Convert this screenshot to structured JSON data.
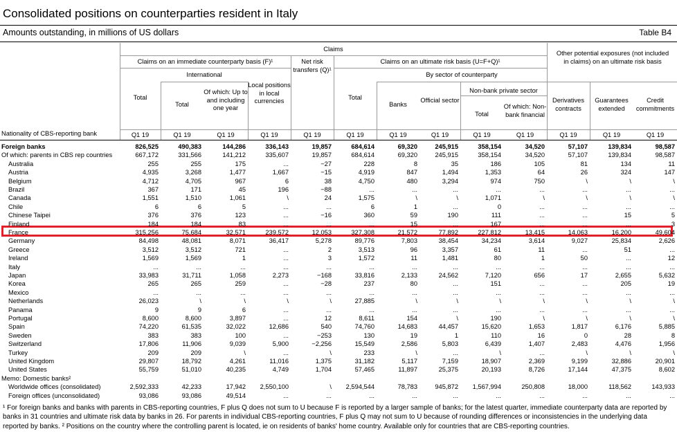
{
  "title": "Consolidated positions on counterparties resident in Italy",
  "subtitle": "Amounts outstanding, in millions of US dollars",
  "table_label": "Table B4",
  "headers": {
    "claims": "Claims",
    "immediate": "Claims on an immediate counterparty basis (F)¹",
    "international": "International",
    "ultimate": "Claims on an ultimate risk basis (U=F+Q)¹",
    "by_sector": "By sector of counterparty",
    "nonbank_private": "Non-bank private sector",
    "other_potential": "Other potential exposures (not included in claims) on an ultimate risk basis",
    "net_risk": "Net risk transfers (Q)¹",
    "nationality": "Nationality of CBS-reporting bank",
    "cols": [
      "Total",
      "Total",
      "Of which: Up to and including one year",
      "Local positions in local currencies",
      "",
      "Total",
      "Banks",
      "Official sector",
      "Total",
      "Of which: Non-bank financial",
      "Derivatives contracts",
      "Guarantees extended",
      "Credit commitments"
    ],
    "period": "Q1 19"
  },
  "rows": [
    {
      "label": "Foreign banks",
      "bold": true,
      "v": [
        "826,525",
        "490,383",
        "144,286",
        "336,143",
        "19,857",
        "684,614",
        "69,320",
        "245,915",
        "358,154",
        "34,520",
        "57,107",
        "139,834",
        "98,587"
      ]
    },
    {
      "label": "Of which: parents in CBS rep countries",
      "v": [
        "667,172",
        "331,566",
        "141,212",
        "335,607",
        "19,857",
        "684,614",
        "69,320",
        "245,915",
        "358,154",
        "34,520",
        "57,107",
        "139,834",
        "98,587"
      ]
    },
    {
      "label": "Australia",
      "v": [
        "255",
        "255",
        "175",
        "...",
        "−27",
        "228",
        "8",
        "35",
        "186",
        "105",
        "81",
        "134",
        "11"
      ]
    },
    {
      "label": "Austria",
      "v": [
        "4,935",
        "3,268",
        "1,477",
        "1,667",
        "−15",
        "4,919",
        "847",
        "1,494",
        "1,353",
        "64",
        "26",
        "324",
        "147"
      ]
    },
    {
      "label": "Belgium",
      "v": [
        "4,712",
        "4,705",
        "967",
        "6",
        "38",
        "4,750",
        "480",
        "3,294",
        "974",
        "750",
        "\\",
        "\\",
        "\\"
      ]
    },
    {
      "label": "Brazil",
      "v": [
        "367",
        "171",
        "45",
        "196",
        "−88",
        "...",
        "...",
        "...",
        "...",
        "...",
        "...",
        "...",
        "..."
      ]
    },
    {
      "label": "Canada",
      "v": [
        "1,551",
        "1,510",
        "1,061",
        "\\",
        "24",
        "1,575",
        "\\",
        "\\",
        "1,071",
        "\\",
        "\\",
        "\\",
        "\\"
      ]
    },
    {
      "label": "Chile",
      "v": [
        "6",
        "6",
        "5",
        "...",
        "...",
        "6",
        "1",
        "...",
        "0",
        "...",
        "...",
        "...",
        "..."
      ]
    },
    {
      "label": "Chinese Taipei",
      "v": [
        "376",
        "376",
        "123",
        "...",
        "−16",
        "360",
        "59",
        "190",
        "111",
        "...",
        "...",
        "15",
        "5"
      ]
    },
    {
      "label": "Finland",
      "v": [
        "184",
        "184",
        "83",
        "...",
        "...",
        "...",
        "15",
        "...",
        "167",
        "...",
        "...",
        "...",
        "3"
      ]
    },
    {
      "label": "France",
      "v": [
        "315,256",
        "75,684",
        "32,571",
        "239,572",
        "12,053",
        "327,308",
        "21,572",
        "77,892",
        "227,812",
        "13,415",
        "14,063",
        "16,200",
        "49,604"
      ]
    },
    {
      "label": "Germany",
      "v": [
        "84,498",
        "48,081",
        "8,071",
        "36,417",
        "5,278",
        "89,776",
        "7,803",
        "38,454",
        "34,234",
        "3,614",
        "9,027",
        "25,834",
        "2,626"
      ]
    },
    {
      "label": "Greece",
      "v": [
        "3,512",
        "3,512",
        "721",
        "...",
        "2",
        "3,513",
        "96",
        "3,357",
        "61",
        "11",
        "...",
        "51",
        "..."
      ]
    },
    {
      "label": "Ireland",
      "v": [
        "1,569",
        "1,569",
        "1",
        "...",
        "3",
        "1,572",
        "11",
        "1,481",
        "80",
        "1",
        "50",
        "...",
        "12"
      ]
    },
    {
      "label": "Italy",
      "v": [
        "...",
        "...",
        "...",
        "...",
        "...",
        "...",
        "...",
        "...",
        "...",
        "...",
        "...",
        "...",
        "..."
      ]
    },
    {
      "label": "Japan",
      "v": [
        "33,983",
        "31,711",
        "1,058",
        "2,273",
        "−168",
        "33,816",
        "2,133",
        "24,562",
        "7,120",
        "656",
        "17",
        "2,655",
        "5,632"
      ]
    },
    {
      "label": "Korea",
      "v": [
        "265",
        "265",
        "259",
        "...",
        "−28",
        "237",
        "80",
        "...",
        "151",
        "...",
        "...",
        "205",
        "19"
      ]
    },
    {
      "label": "Mexico",
      "v": [
        "...",
        "...",
        "...",
        "...",
        "...",
        "...",
        "...",
        "...",
        "...",
        "...",
        "...",
        "...",
        "..."
      ]
    },
    {
      "label": "Netherlands",
      "v": [
        "26,023",
        "\\",
        "\\",
        "\\",
        "\\",
        "27,885",
        "\\",
        "\\",
        "\\",
        "\\",
        "\\",
        "\\",
        "\\"
      ]
    },
    {
      "label": "Panama",
      "v": [
        "9",
        "9",
        "6",
        "...",
        "...",
        "...",
        "...",
        "...",
        "...",
        "...",
        "...",
        "...",
        "..."
      ]
    },
    {
      "label": "Portugal",
      "v": [
        "8,600",
        "8,600",
        "3,897",
        "...",
        "12",
        "8,611",
        "154",
        "\\",
        "190",
        "\\",
        "\\",
        "\\",
        "\\"
      ]
    },
    {
      "label": "Spain",
      "v": [
        "74,220",
        "61,535",
        "32,022",
        "12,686",
        "540",
        "74,760",
        "14,683",
        "44,457",
        "15,620",
        "1,653",
        "1,817",
        "6,176",
        "5,885"
      ]
    },
    {
      "label": "Sweden",
      "v": [
        "383",
        "383",
        "100",
        "...",
        "−253",
        "130",
        "19",
        "1",
        "110",
        "16",
        "0",
        "28",
        "8"
      ]
    },
    {
      "label": "Switzerland",
      "v": [
        "17,806",
        "11,906",
        "9,039",
        "5,900",
        "−2,256",
        "15,549",
        "2,586",
        "5,803",
        "6,439",
        "1,407",
        "2,483",
        "4,476",
        "1,956"
      ]
    },
    {
      "label": "Turkey",
      "v": [
        "209",
        "209",
        "\\",
        "...",
        "\\",
        "233",
        "\\",
        "...",
        "\\",
        "...",
        "\\",
        "\\",
        "\\"
      ]
    },
    {
      "label": "United Kingdom",
      "v": [
        "29,807",
        "18,792",
        "4,261",
        "11,016",
        "1,375",
        "31,182",
        "5,117",
        "7,159",
        "18,907",
        "2,369",
        "9,199",
        "32,886",
        "20,901"
      ]
    },
    {
      "label": "United States",
      "v": [
        "55,759",
        "51,010",
        "40,235",
        "4,749",
        "1,704",
        "57,465",
        "11,897",
        "25,375",
        "20,193",
        "8,726",
        "17,144",
        "47,375",
        "8,602"
      ]
    },
    {
      "label": "Memo: Domestic banks²",
      "v": [
        "",
        "",
        "",
        "",
        "",
        "",
        "",
        "",
        "",
        "",
        "",
        "",
        ""
      ]
    },
    {
      "label": "Worldwide offices (consolidated)",
      "v": [
        "2,592,333",
        "42,233",
        "17,942",
        "2,550,100",
        "\\",
        "2,594,544",
        "78,783",
        "945,872",
        "1,567,994",
        "250,808",
        "18,000",
        "118,562",
        "143,933"
      ]
    },
    {
      "label": "Foreign offices (unconsolidated)",
      "v": [
        "93,086",
        "93,086",
        "49,514",
        "...",
        "...",
        "...",
        "...",
        "...",
        "...",
        "...",
        "...",
        "...",
        "..."
      ]
    }
  ],
  "footnote": "¹ For foreign banks and banks with parents in CBS-reporting countries, F plus Q does not sum to U because F is reported by a larger sample of banks; for the latest quarter, immediate counterparty data are reported by banks in 31 countries and ultimate risk data by banks in 26. For parents in individual CBS-reporting countries, F plus Q may not sum to U because of rounding differences or inconsistencies in the underlying data reported by banks.  ² Positions on the country where the controlling parent is located, ie on residents of banks' home country. Available only for countries that are CBS-reporting countries.",
  "highlight_color": "#e0202a"
}
